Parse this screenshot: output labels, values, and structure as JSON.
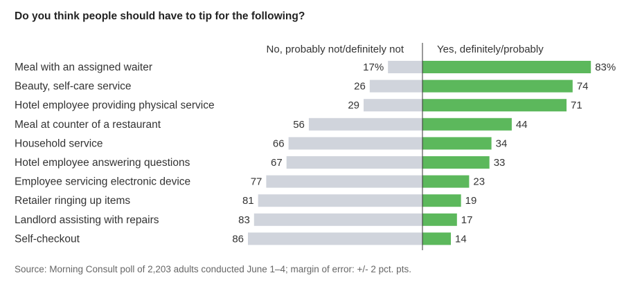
{
  "chart_data": {
    "type": "bar",
    "title": "Do you think people should have to tip for the following?",
    "categories": [
      "Meal with an assigned waiter",
      "Beauty, self-care service",
      "Hotel employee providing physical service",
      "Meal at counter of a restaurant",
      "Household service",
      "Hotel employee answering questions",
      "Employee servicing electronic device",
      "Retailer ringing up items",
      "Landlord assisting with repairs",
      "Self-checkout"
    ],
    "series": [
      {
        "name": "No, probably not/definitely not",
        "values": [
          17,
          26,
          29,
          56,
          66,
          67,
          77,
          81,
          83,
          86
        ],
        "labels": [
          "17%",
          "26",
          "29",
          "56",
          "66",
          "67",
          "77",
          "81",
          "83",
          "86"
        ],
        "color": "#d0d4dc",
        "direction": "left"
      },
      {
        "name": "Yes, definitely/probably",
        "values": [
          83,
          74,
          71,
          44,
          34,
          33,
          23,
          19,
          17,
          14
        ],
        "labels": [
          "83%",
          "74",
          "71",
          "44",
          "34",
          "33",
          "23",
          "19",
          "17",
          "14"
        ],
        "color": "#5cb85c",
        "direction": "right"
      }
    ],
    "unit": "%",
    "axis_range": [
      0,
      100
    ]
  },
  "source": "Source: Morning Consult poll of 2,203 adults conducted June 1–4; margin of error: +/- 2 pct. pts."
}
